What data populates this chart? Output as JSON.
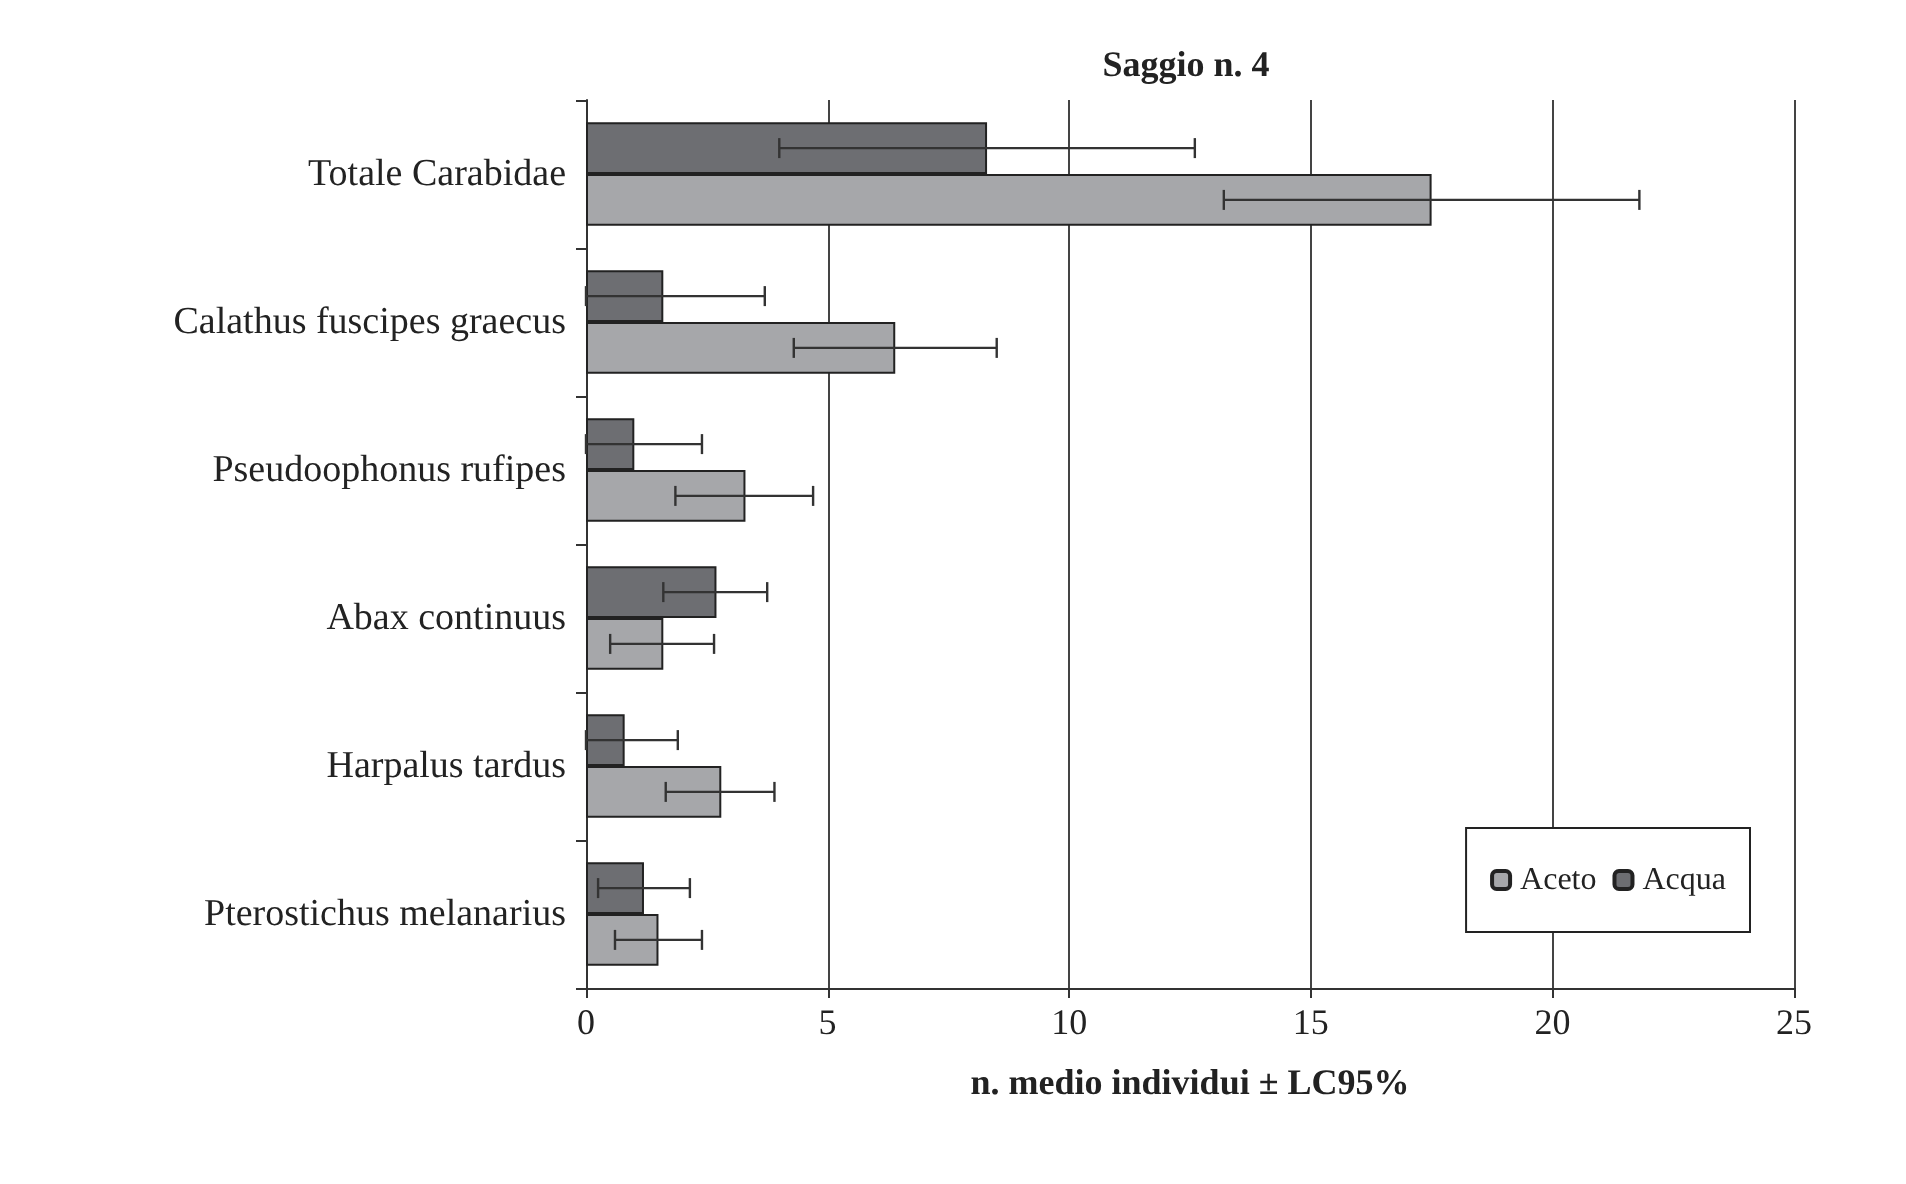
{
  "chart_data": {
    "type": "bar",
    "orientation": "horizontal",
    "title": "Saggio n. 4",
    "xlabel": "n. medio individui ± LC95%",
    "categories": [
      "Totale Carabidae",
      "Calathus fuscipes graecus",
      "Pseudoophonus rufipes",
      "Abax continuus",
      "Harpalus tardus",
      "Pterostichus melanarius"
    ],
    "series": [
      {
        "name": "Aceto",
        "color": "#a6a7aa",
        "values": [
          17.5,
          6.4,
          3.3,
          1.6,
          2.8,
          1.5
        ],
        "errors": [
          [
            13.2,
            21.8
          ],
          [
            4.3,
            8.5
          ],
          [
            1.85,
            4.7
          ],
          [
            0.5,
            2.65
          ],
          [
            1.65,
            3.9
          ],
          [
            0.6,
            2.4
          ]
        ]
      },
      {
        "name": "Acqua",
        "color": "#6d6e72",
        "values": [
          8.3,
          1.6,
          1.0,
          2.7,
          0.8,
          1.2
        ],
        "errors": [
          [
            4.0,
            12.6
          ],
          [
            0,
            3.7
          ],
          [
            0,
            2.4
          ],
          [
            1.6,
            3.75
          ],
          [
            0,
            1.9
          ],
          [
            0.25,
            2.15
          ]
        ]
      }
    ],
    "xlim": [
      0,
      25
    ],
    "xticks": [
      0,
      5,
      10,
      15,
      20,
      25
    ],
    "grid": "x",
    "legend": "bottom right"
  }
}
